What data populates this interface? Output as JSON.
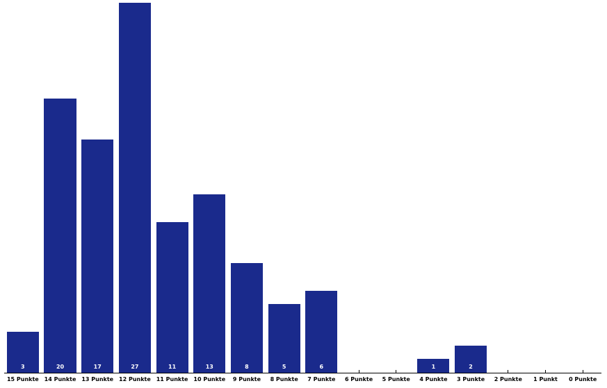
{
  "chart_data": {
    "type": "bar",
    "title": "",
    "xlabel": "",
    "ylabel": "",
    "categories": [
      "15 Punkte",
      "14 Punkte",
      "13 Punkte",
      "12 Punkte",
      "11 Punkte",
      "10 Punkte",
      "9 Punkte",
      "8 Punkte",
      "7 Punkte",
      "6 Punkte",
      "5 Punkte",
      "4 Punkte",
      "3 Punkte",
      "2 Punkte",
      "1 Punkt",
      "0 Punkte"
    ],
    "values": [
      3,
      20,
      17,
      27,
      11,
      13,
      8,
      5,
      6,
      0,
      0,
      1,
      2,
      0,
      0,
      0
    ],
    "value_labels": [
      "3",
      "20",
      "17",
      "27",
      "11",
      "13",
      "8",
      "5",
      "6",
      "",
      "",
      "1",
      "2",
      "",
      "",
      ""
    ],
    "ylim": [
      0,
      27
    ],
    "grid": false,
    "legend": null,
    "y_axis_shown": false,
    "value_label_position": "inside-base",
    "colors": {
      "bar": "#1A2A8C",
      "value_label": "#FFFFFF",
      "axis": "#000000",
      "tick": "#000000",
      "x_label": "#000000",
      "background": "#FFFFFF"
    }
  }
}
